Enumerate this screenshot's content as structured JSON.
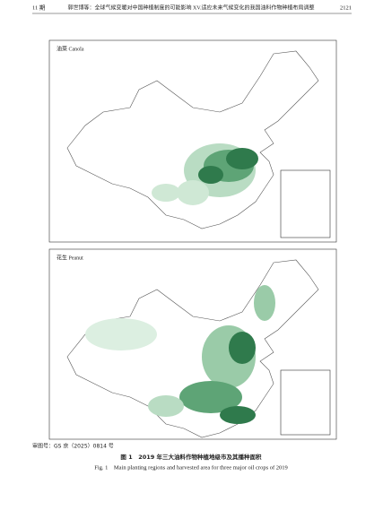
{
  "header": {
    "issue": "11 期",
    "running_title": "郭世博等：全球气候变暖对中国种植制度的可能影响 XV.适应未来气候变化的我国油料作物种植布局调整",
    "page": "2121"
  },
  "figures": [
    {
      "label": "油菜 Canola"
    },
    {
      "label": "花生 Peanut"
    }
  ],
  "map_approval": "审图号：GS 京（2025）0814 号",
  "caption": {
    "zh": "图 1　2019 年三大油料作物种植地级市及其播种面积",
    "en": "Fig. 1　Main planting regions and harvested area for three major oil crops of 2019"
  }
}
